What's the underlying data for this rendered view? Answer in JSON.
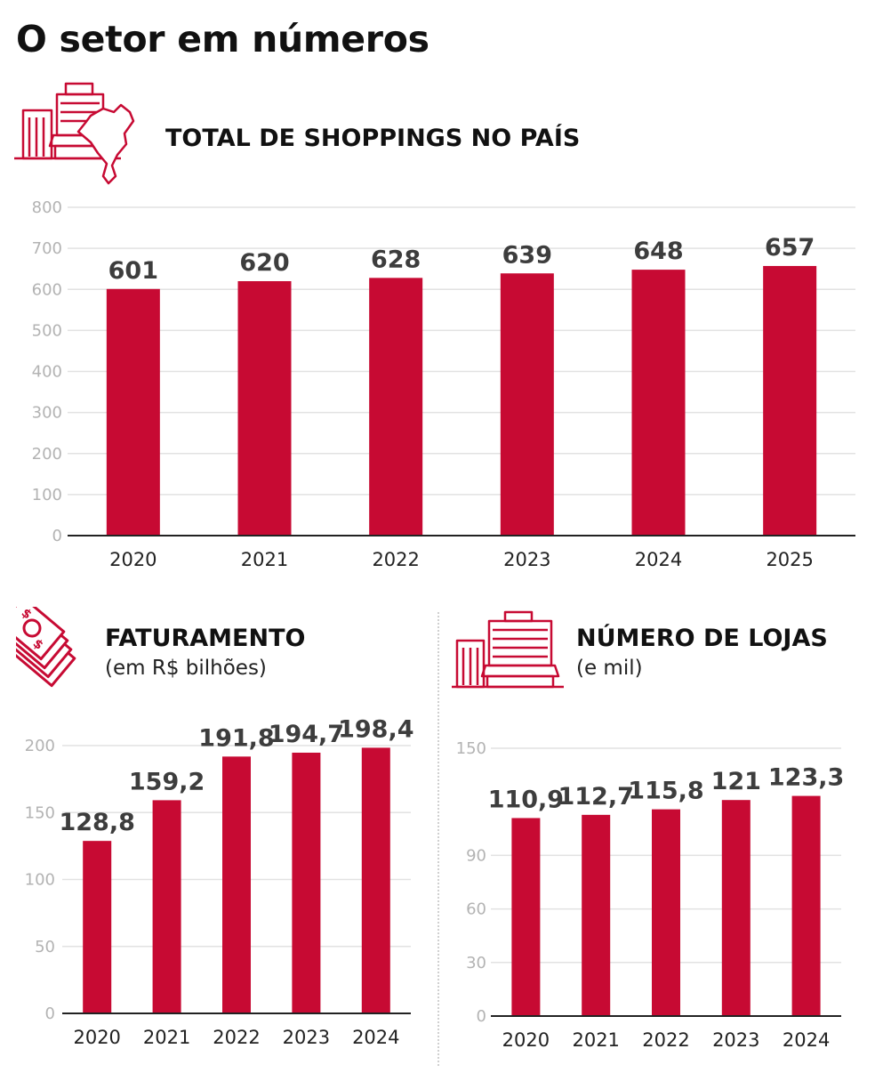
{
  "page": {
    "title": "O setor em números"
  },
  "icons": {
    "mall_brazil": "mall-brazil-map-icon",
    "money": "money-bills-icon",
    "building": "building-store-icon"
  },
  "colors": {
    "bar": "#c70a33",
    "grid": "#e2e2e2",
    "axis": "#222222",
    "tick": "#b3b3b3",
    "label": "#3d3d3d"
  },
  "sections": {
    "shoppings": {
      "heading": "TOTAL DE SHOPPINGS NO PAÍS"
    },
    "faturamento": {
      "heading": "FATURAMENTO",
      "subheading": "(em R$ bilhões)"
    },
    "lojas": {
      "heading": "NÚMERO DE LOJAS",
      "subheading": "(e mil)"
    }
  },
  "chart_data": [
    {
      "id": "shoppings",
      "type": "bar",
      "title": "TOTAL DE SHOPPINGS NO PAÍS",
      "categories": [
        "2020",
        "2021",
        "2022",
        "2023",
        "2024",
        "2025"
      ],
      "values": [
        601,
        620,
        628,
        639,
        648,
        657
      ],
      "value_labels": [
        "601",
        "620",
        "628",
        "639",
        "648",
        "657"
      ],
      "yticks": [
        0,
        100,
        200,
        300,
        400,
        500,
        600,
        700,
        800
      ],
      "ytick_labels": [
        "0",
        "100",
        "200",
        "300",
        "400",
        "500",
        "600",
        "700",
        "800"
      ],
      "ylim": [
        0,
        800
      ],
      "xlabel": "",
      "ylabel": "",
      "grid": true
    },
    {
      "id": "faturamento",
      "type": "bar",
      "title": "FATURAMENTO",
      "subtitle": "(em R$ bilhões)",
      "categories": [
        "2020",
        "2021",
        "2022",
        "2023",
        "2024"
      ],
      "values": [
        128.8,
        159.2,
        191.8,
        194.7,
        198.4
      ],
      "value_labels": [
        "128,8",
        "159,2",
        "191,8",
        "194,7",
        "198,4"
      ],
      "yticks": [
        0,
        50,
        100,
        150,
        200
      ],
      "ytick_labels": [
        "0",
        "50",
        "100",
        "150",
        "200"
      ],
      "ylim": [
        0,
        200
      ],
      "xlabel": "",
      "ylabel": "",
      "grid": true
    },
    {
      "id": "lojas",
      "type": "bar",
      "title": "NÚMERO DE LOJAS",
      "subtitle": "(e mil)",
      "categories": [
        "2020",
        "2021",
        "2022",
        "2023",
        "2024"
      ],
      "values": [
        110.9,
        112.7,
        115.8,
        121,
        123.3
      ],
      "value_labels": [
        "110,9",
        "112,7",
        "115,8",
        "121",
        "123,3"
      ],
      "yticks": [
        0,
        30,
        60,
        90,
        150
      ],
      "ytick_labels": [
        "0",
        "30",
        "60",
        "90",
        "150"
      ],
      "ylim": [
        0,
        150
      ],
      "xlabel": "",
      "ylabel": "",
      "grid": true
    }
  ]
}
